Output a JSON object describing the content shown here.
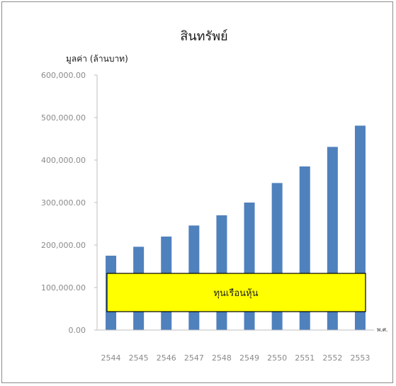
{
  "chart_data": {
    "type": "bar",
    "title": "สินทรัพย์",
    "ylabel": "มูลค่า (ล้านบาท)",
    "xlabel": "พ.ศ.",
    "categories": [
      "2544",
      "2545",
      "2546",
      "2547",
      "2548",
      "2549",
      "2550",
      "2551",
      "2552",
      "2553"
    ],
    "values": [
      175000,
      196000,
      220000,
      246000,
      270000,
      300000,
      346000,
      385000,
      431000,
      481000
    ],
    "ylim": [
      0,
      600000
    ],
    "yticks": [
      "0.00",
      "100,000.00",
      "200,000.00",
      "300,000.00",
      "400,000.00",
      "500,000.00",
      "600,000.00"
    ],
    "grid": false,
    "bar_color": "#4f81bd",
    "annotation": {
      "text": "ทุนเรือนหุ้น",
      "fill": "#ffff00",
      "border": "#000000"
    }
  }
}
